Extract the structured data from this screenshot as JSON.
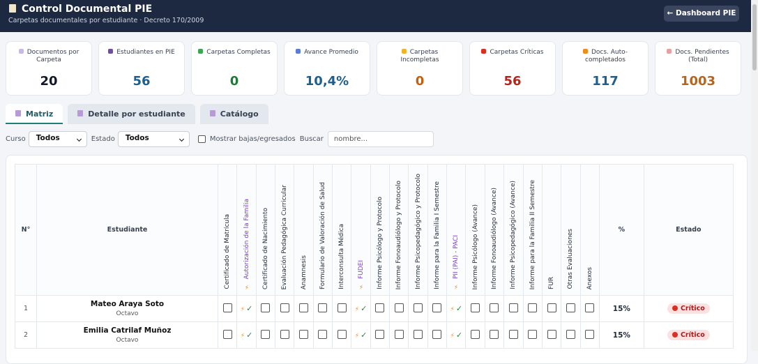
{
  "header": {
    "title": "Control Documental PIE",
    "subtitle": "Carpetas documentales por estudiante · Decreto 170/2009",
    "button": "← Dashboard PIE"
  },
  "cards": [
    {
      "label": "Documentos por Carpeta",
      "value": "20",
      "color": "#111827",
      "icon": "#c7b8e8"
    },
    {
      "label": "Estudiantes en PIE",
      "value": "56",
      "color": "#1e5f8e",
      "icon": "#6b4fa0"
    },
    {
      "label": "Carpetas Completas",
      "value": "0",
      "color": "#1f7a3a",
      "icon": "#3aa655"
    },
    {
      "label": "Avance Promedio",
      "value": "10,4%",
      "color": "#1e5f8e",
      "icon": "#5b7bd5"
    },
    {
      "label": "Carpetas Incompletas",
      "value": "0",
      "color": "#c2600e",
      "icon": "#f0b429"
    },
    {
      "label": "Carpetas Críticas",
      "value": "56",
      "color": "#b3261e",
      "icon": "#d93025"
    },
    {
      "label": "Docs. Auto-completados",
      "value": "117",
      "color": "#1e5f8e",
      "icon": "#f08c1a"
    },
    {
      "label": "Docs. Pendientes (Total)",
      "value": "1003",
      "color": "#b5651d",
      "icon": "#e8a0a0"
    }
  ],
  "tabs": [
    "Matriz",
    "Detalle por estudiante",
    "Catálogo"
  ],
  "active_tab": 0,
  "filters": {
    "course_label": "Curso",
    "course_value": "Todos",
    "status_label": "Estado",
    "status_value": "Todos",
    "show_inactive": "Mostrar bajas/egresados",
    "search_label": "Buscar",
    "search_placeholder": "nombre..."
  },
  "table": {
    "headers": {
      "num": "N°",
      "student": "Estudiante",
      "pct": "%",
      "status": "Estado"
    },
    "columns": [
      {
        "label": "Certificado de Matrícula",
        "auto": false
      },
      {
        "label": "Autorización de la Familia",
        "auto": true
      },
      {
        "label": "Certificado de Nacimiento",
        "auto": false
      },
      {
        "label": "Evaluación Pedagógica Curricular",
        "auto": false
      },
      {
        "label": "Anamnesis",
        "auto": false
      },
      {
        "label": "Formulario de Valoración de Salud",
        "auto": false
      },
      {
        "label": "Interconsulta Médica",
        "auto": false
      },
      {
        "label": "FUDEI",
        "auto": true
      },
      {
        "label": "Informe Psicólogo y Protocolo",
        "auto": false
      },
      {
        "label": "Informe Fonoaudiólogo y Protocolo",
        "auto": false
      },
      {
        "label": "Informe Psicopedagógico y Protocolo",
        "auto": false
      },
      {
        "label": "Informe para la Familia I Semestre",
        "auto": false
      },
      {
        "label": "PII (PAI) - PACI",
        "auto": true
      },
      {
        "label": "Informe Psicólogo (Avance)",
        "auto": false
      },
      {
        "label": "Informe Fonoaudiólogo (Avance)",
        "auto": false
      },
      {
        "label": "Informe Psicopedagógico (Avance)",
        "auto": false
      },
      {
        "label": "Informe para la Familia II Semestre",
        "auto": false
      },
      {
        "label": "FUR",
        "auto": false
      },
      {
        "label": "Otras Evaluaciones",
        "auto": false
      },
      {
        "label": "Anexos",
        "auto": false
      }
    ],
    "rows": [
      {
        "num": "1",
        "name": "Mateo Araya Soto",
        "course": "Octavo",
        "pct": "15%",
        "status": "Crítico"
      },
      {
        "num": "2",
        "name": "Emilia Catrilaf Muñoz",
        "course": "Octavo",
        "pct": "15%",
        "status": "Crítico"
      }
    ]
  }
}
